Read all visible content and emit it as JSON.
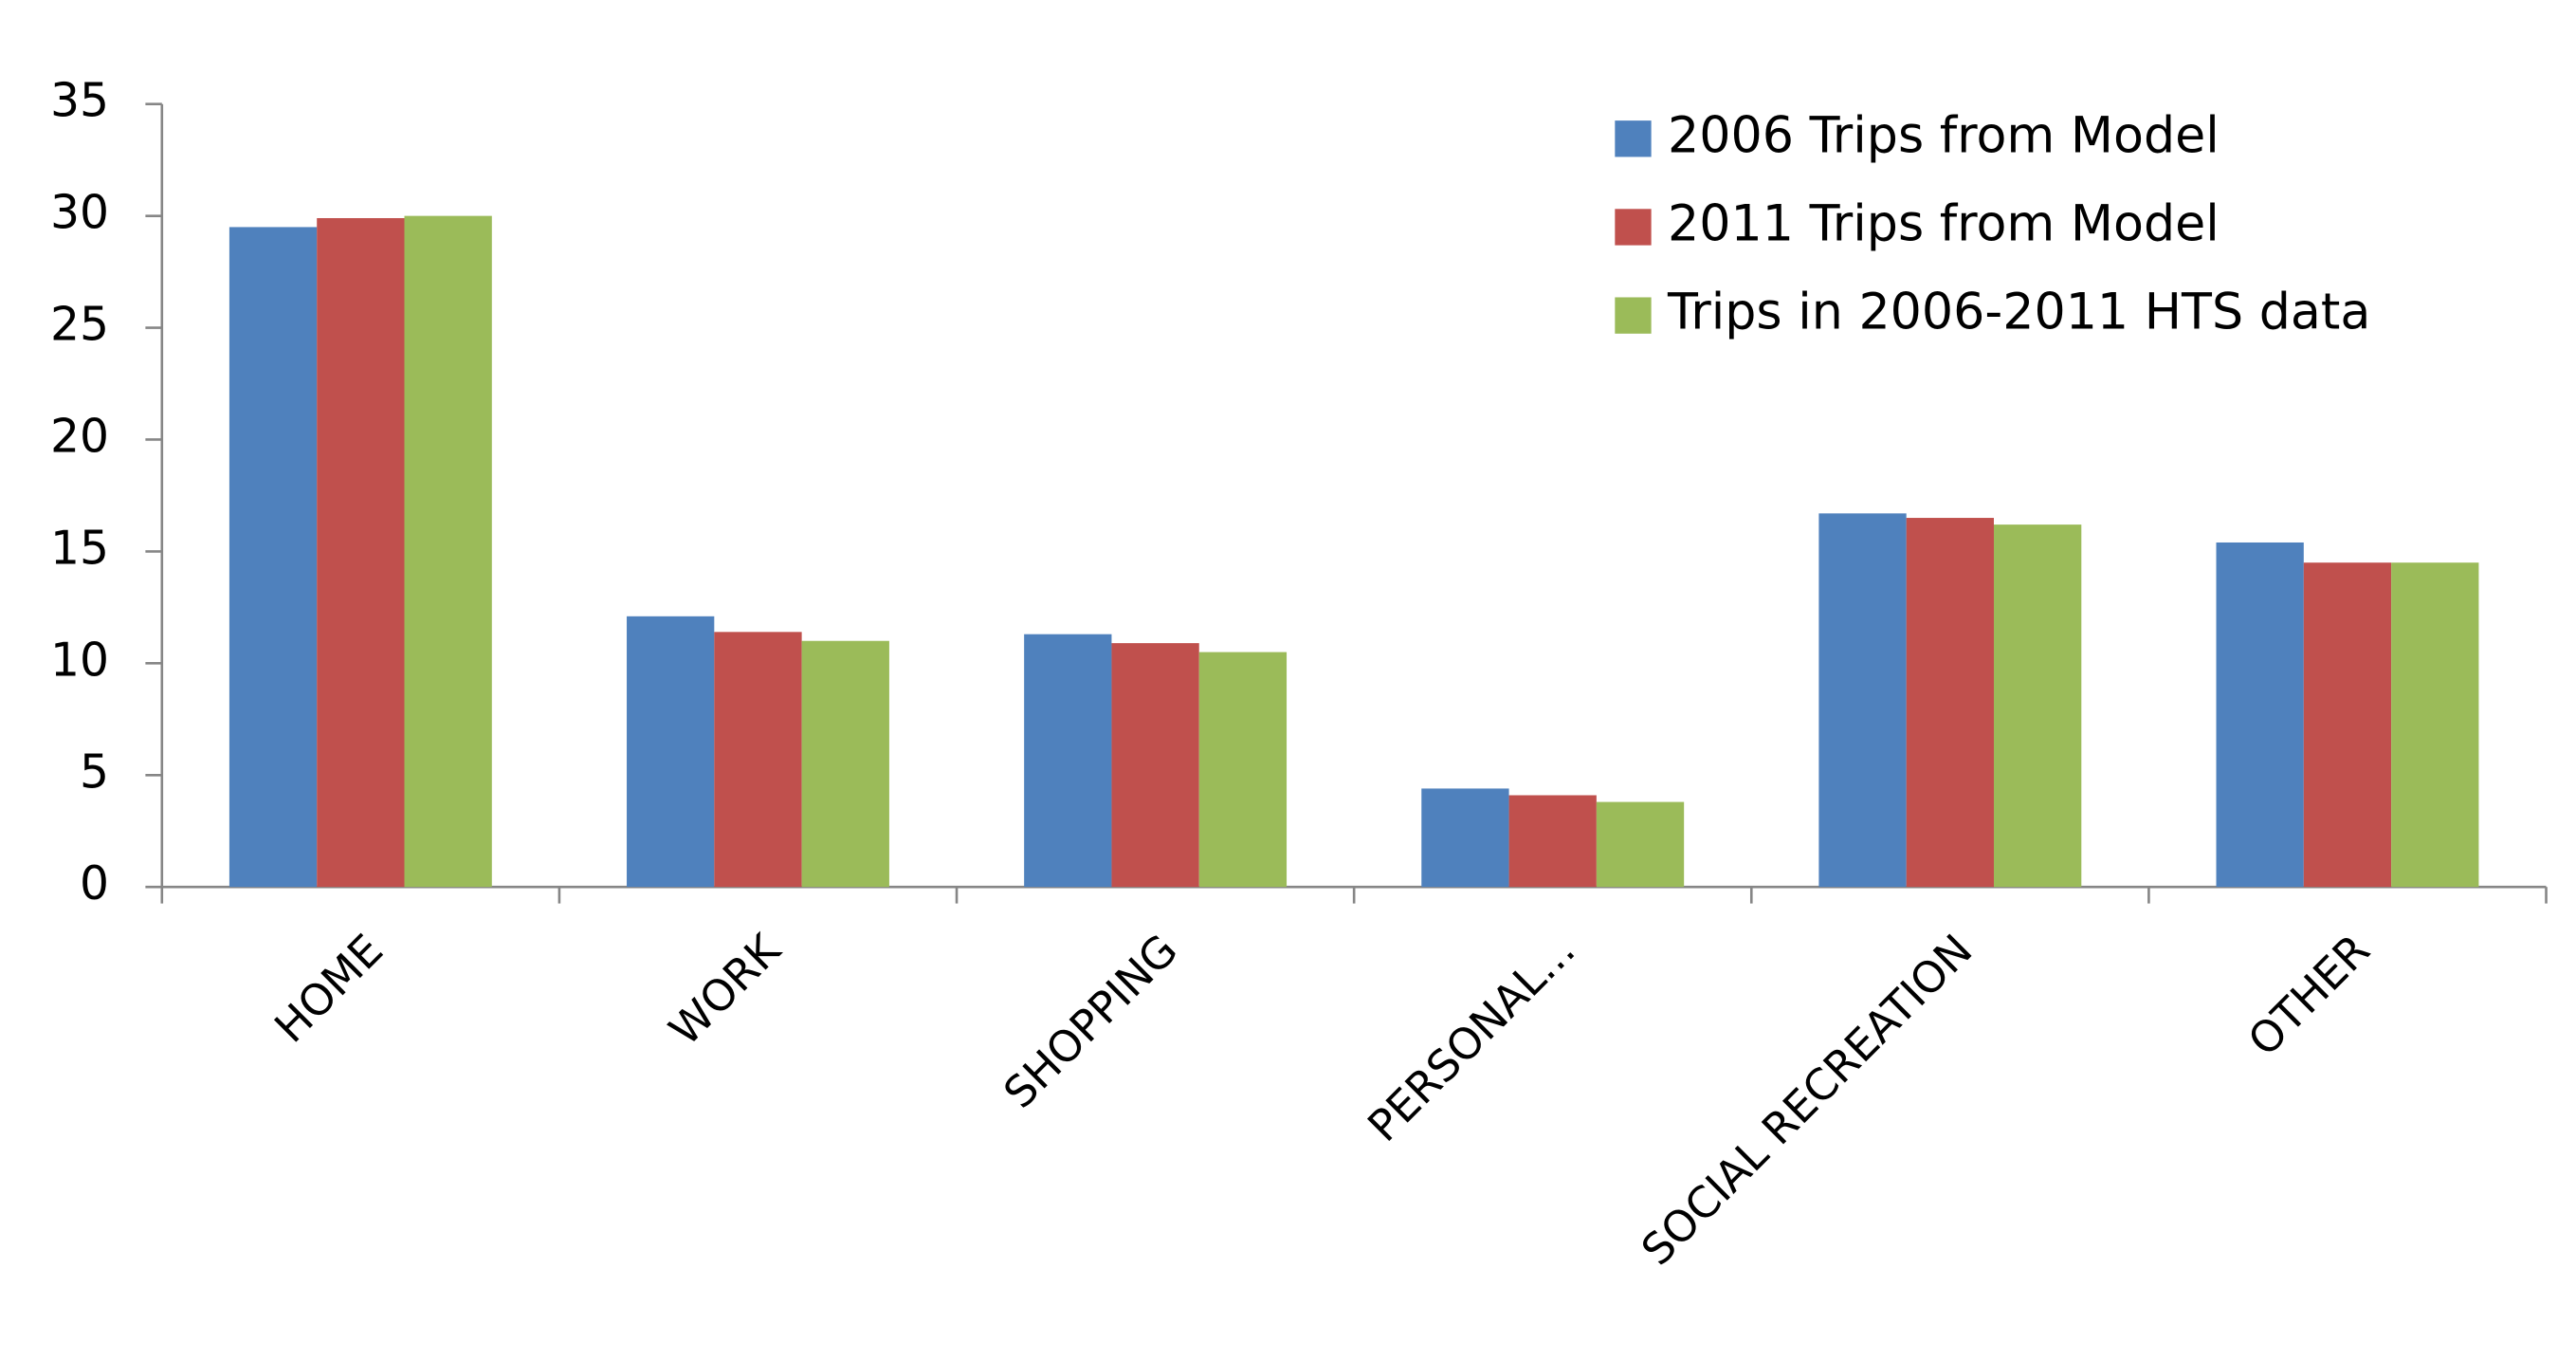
{
  "chart_data": {
    "type": "bar",
    "categories": [
      "HOME",
      "WORK",
      "SHOPPING",
      "PERSONAL...",
      "SOCIAL RECREATION",
      "OTHER"
    ],
    "series": [
      {
        "name": "2006 Trips from Model",
        "color": "#4f81bd",
        "values": [
          29.5,
          12.1,
          11.3,
          4.4,
          16.7,
          15.4
        ]
      },
      {
        "name": "2011 Trips from Model",
        "color": "#c0504d",
        "values": [
          29.9,
          11.4,
          10.9,
          4.1,
          16.5,
          14.5
        ]
      },
      {
        "name": "Trips in 2006-2011 HTS data",
        "color": "#9bbb59",
        "values": [
          30.0,
          11.0,
          10.5,
          3.8,
          16.2,
          14.5
        ]
      }
    ],
    "ylim": [
      0,
      35
    ],
    "yticks": [
      0,
      5,
      10,
      15,
      20,
      25,
      30,
      35
    ],
    "grid": false,
    "legend": "top-right"
  }
}
